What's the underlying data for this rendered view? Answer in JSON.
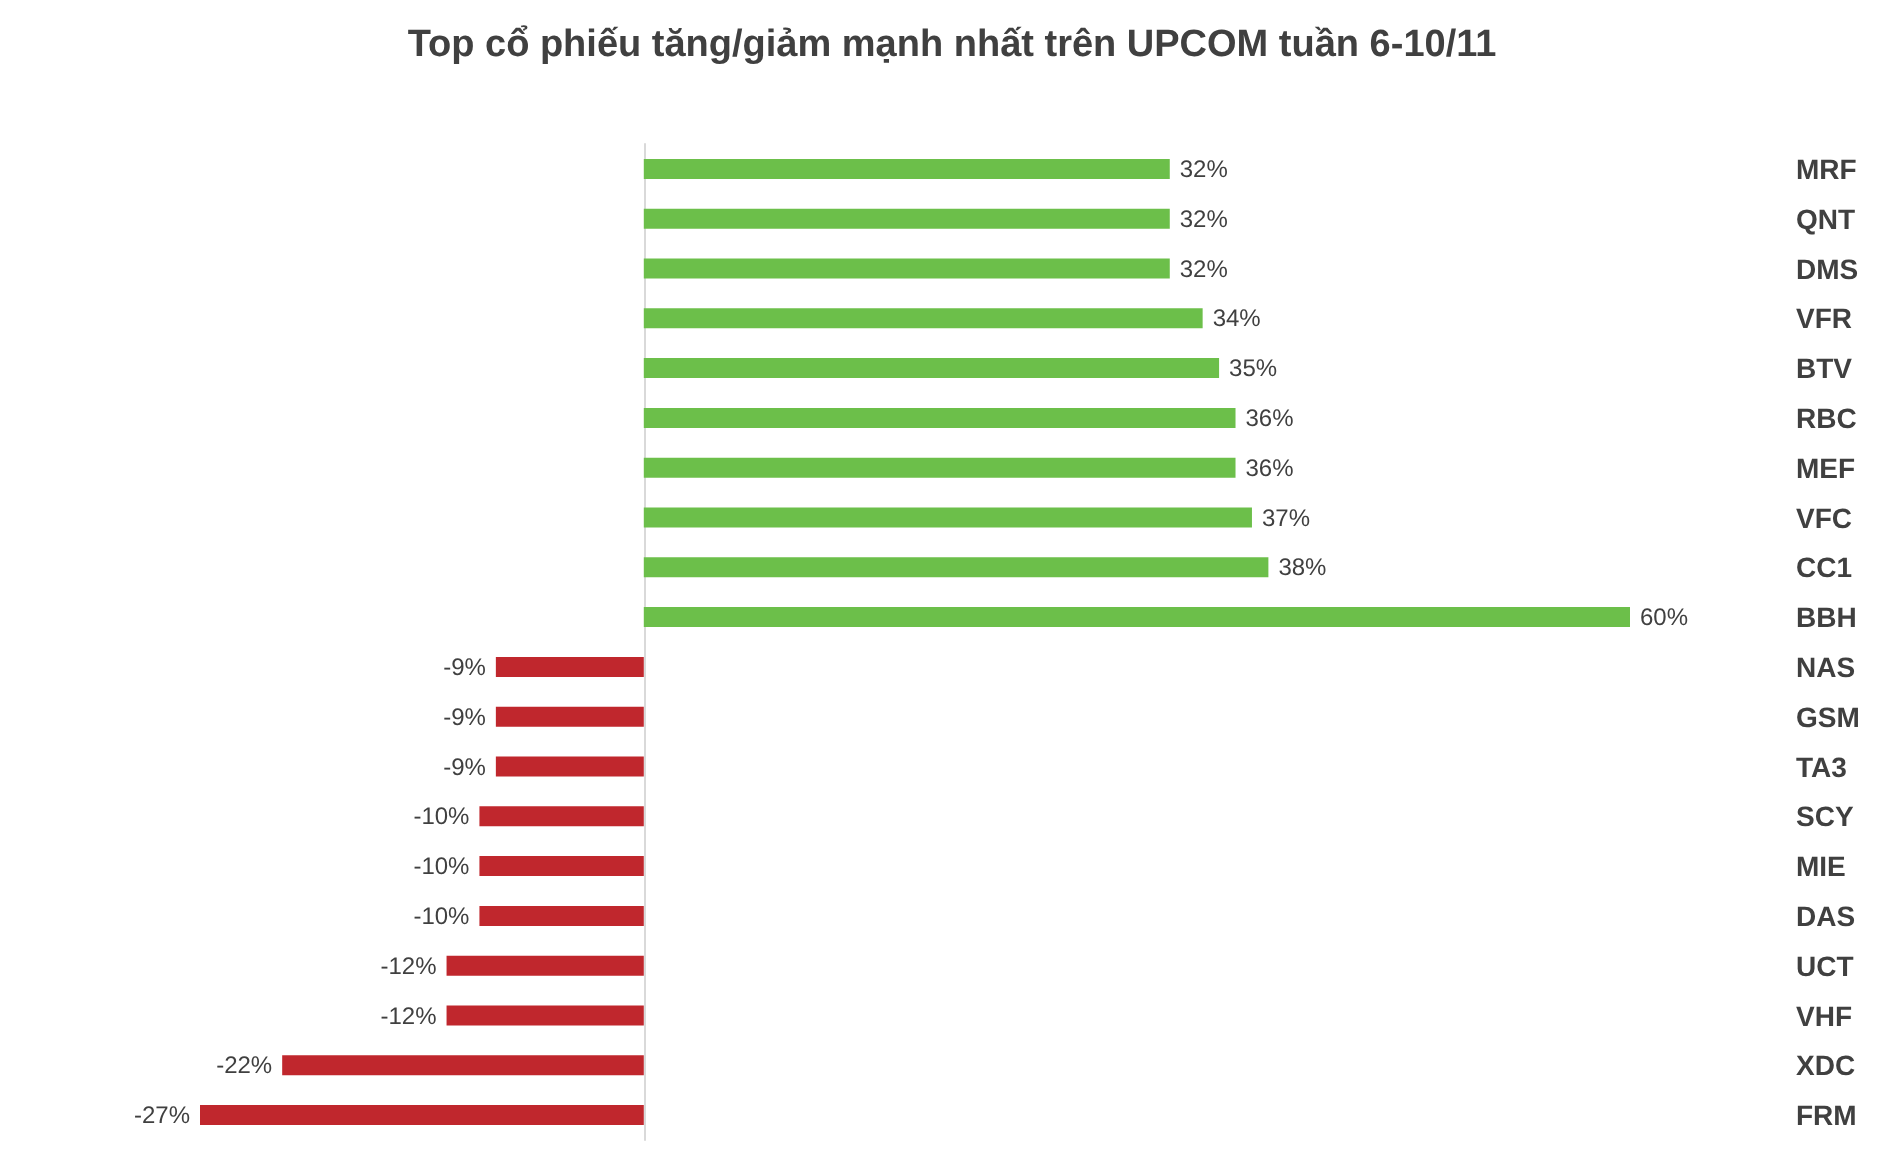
{
  "chart_data": {
    "type": "bar",
    "orientation": "horizontal",
    "title": "Top cổ phiếu tăng/giảm mạnh nhất trên UPCOM tuần 6-10/11",
    "categories": [
      "MRF",
      "QNT",
      "DMS",
      "VFR",
      "BTV",
      "RBC",
      "MEF",
      "VFC",
      "CC1",
      "BBH",
      "NAS",
      "GSM",
      "TA3",
      "SCY",
      "MIE",
      "DAS",
      "UCT",
      "VHF",
      "XDC",
      "FRM"
    ],
    "values": [
      32,
      32,
      32,
      34,
      35,
      36,
      36,
      37,
      38,
      60,
      -9,
      -9,
      -9,
      -10,
      -10,
      -10,
      -12,
      -12,
      -22,
      -27
    ],
    "colors": [
      "#6cbf4a",
      "#6cbf4a",
      "#6cbf4a",
      "#6cbf4a",
      "#6cbf4a",
      "#6cbf4a",
      "#6cbf4a",
      "#6cbf4a",
      "#6cbf4a",
      "#6cbf4a",
      "#c0272d",
      "#c0272d",
      "#c0272d",
      "#c0272d",
      "#c0272d",
      "#c0272d",
      "#c0272d",
      "#c0272d",
      "#c0272d",
      "#c0272d"
    ],
    "value_labels": [
      "32%",
      "32%",
      "32%",
      "34%",
      "35%",
      "36%",
      "36%",
      "37%",
      "38%",
      "60%",
      "-9%",
      "-9%",
      "-9%",
      "-10%",
      "-10%",
      "-10%",
      "-12%",
      "-12%",
      "-22%",
      "-27%"
    ]
  }
}
